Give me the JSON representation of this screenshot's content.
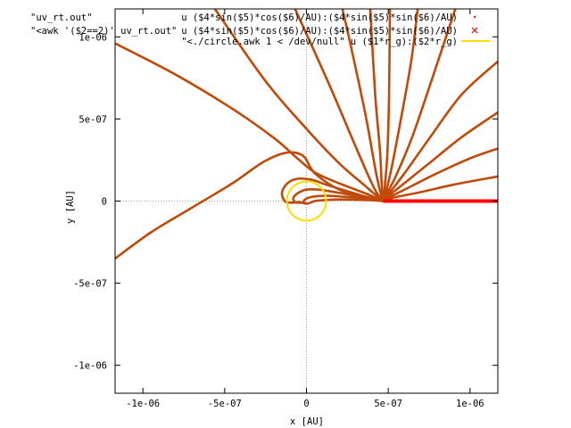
{
  "chart_data": {
    "type": "line",
    "title": "",
    "xlabel": "x [AU]",
    "ylabel": "y [AU]",
    "xlim": [
      -1.17e-06,
      1.17e-06
    ],
    "ylim": [
      -1.17e-06,
      1.17e-06
    ],
    "grid": "zero-axes only",
    "legend_placement": "top",
    "x_ticks": [
      {
        "value": -1e-06,
        "label": "-1e-06"
      },
      {
        "value": -5e-07,
        "label": "-5e-07"
      },
      {
        "value": 0,
        "label": "0"
      },
      {
        "value": 5e-07,
        "label": "5e-07"
      },
      {
        "value": 1e-06,
        "label": "1e-06"
      }
    ],
    "y_ticks": [
      {
        "value": -1e-06,
        "label": "-1e-06"
      },
      {
        "value": -5e-07,
        "label": "-5e-07"
      },
      {
        "value": 0,
        "label": "0"
      },
      {
        "value": 5e-07,
        "label": "5e-07"
      },
      {
        "value": 1e-06,
        "label": "1e-06"
      }
    ],
    "legend": [
      {
        "file": "\"uv_rt.out\"",
        "expr": "u ($4*sin($5)*cos($6)/AU):($4*sin($5)*sin($6)/AU)",
        "color": "#cc3300",
        "style": "points-dot"
      },
      {
        "file": "\"<awk '($2==2)' uv_rt.out\"",
        "expr": "u ($4*sin($5)*cos($6)/AU):($4*sin($5)*sin($6)/AU)",
        "color": "#ff0000",
        "style": "points-cross"
      },
      {
        "file": "",
        "expr": "\"<./circle.awk 1 < /dev/null\" u ($1*r_g):($2*r_g)",
        "color": "#ffdd00",
        "style": "line"
      }
    ],
    "source_point": [
      4.7e-07,
      0
    ],
    "emission_line": {
      "x_start": 4.7e-07,
      "x_end": 1.17e-06,
      "y": 0,
      "color": "#ff0000"
    },
    "circle": {
      "center": [
        0,
        0
      ],
      "radius": 1.2e-07,
      "color": "#ffdd00"
    },
    "rays_color": "#c04a0a",
    "rays": [
      {
        "name": "ray-1",
        "points": [
          [
            4.7e-07,
            0
          ],
          [
            4.9e-07,
            1e-08
          ],
          [
            5.5e-07,
            2.5e-08
          ],
          [
            7e-07,
            5.5e-08
          ],
          [
            9e-07,
            1e-07
          ],
          [
            1.17e-06,
            1.5e-07
          ]
        ]
      },
      {
        "name": "ray-2",
        "points": [
          [
            4.7e-07,
            0
          ],
          [
            5e-07,
            2e-08
          ],
          [
            6e-07,
            7e-08
          ],
          [
            8e-07,
            1.7e-07
          ],
          [
            1e-06,
            2.6e-07
          ],
          [
            1.17e-06,
            3.2e-07
          ]
        ]
      },
      {
        "name": "ray-3",
        "points": [
          [
            4.7e-07,
            0
          ],
          [
            5e-07,
            3e-08
          ],
          [
            6e-07,
            1.1e-07
          ],
          [
            7.5e-07,
            2.3e-07
          ],
          [
            9.5e-07,
            3.9e-07
          ],
          [
            1.17e-06,
            5.4e-07
          ]
        ]
      },
      {
        "name": "ray-4",
        "points": [
          [
            4.7e-07,
            0
          ],
          [
            5e-07,
            4e-08
          ],
          [
            6e-07,
            1.7e-07
          ],
          [
            7.5e-07,
            3.8e-07
          ],
          [
            9.5e-07,
            6.5e-07
          ],
          [
            1.17e-06,
            8.5e-07
          ]
        ]
      },
      {
        "name": "ray-5",
        "points": [
          [
            4.7e-07,
            0
          ],
          [
            5e-07,
            6e-08
          ],
          [
            5.5e-07,
            1.6e-07
          ],
          [
            6.5e-07,
            4e-07
          ],
          [
            7.8e-07,
            7.8e-07
          ],
          [
            9.1e-07,
            1.17e-06
          ]
        ]
      },
      {
        "name": "ray-6",
        "points": [
          [
            4.7e-07,
            0
          ],
          [
            4.9e-07,
            7e-08
          ],
          [
            5.2e-07,
            2e-07
          ],
          [
            5.7e-07,
            4.6e-07
          ],
          [
            6.4e-07,
            8.5e-07
          ],
          [
            6.8e-07,
            1.17e-06
          ]
        ]
      },
      {
        "name": "ray-7",
        "points": [
          [
            4.7e-07,
            0
          ],
          [
            4.8e-07,
            1e-07
          ],
          [
            4.95e-07,
            3e-07
          ],
          [
            5.05e-07,
            6.5e-07
          ],
          [
            5.1e-07,
            1.17e-06
          ]
        ]
      },
      {
        "name": "ray-8",
        "points": [
          [
            4.7e-07,
            0
          ],
          [
            4.6e-07,
            1e-07
          ],
          [
            4.5e-07,
            3e-07
          ],
          [
            4.2e-07,
            6.5e-07
          ],
          [
            3.9e-07,
            1.17e-06
          ]
        ]
      },
      {
        "name": "ray-9",
        "points": [
          [
            4.7e-07,
            0
          ],
          [
            4.5e-07,
            6e-08
          ],
          [
            4.2e-07,
            2e-07
          ],
          [
            3.6e-07,
            5.3e-07
          ],
          [
            2.7e-07,
            9.5e-07
          ],
          [
            2.2e-07,
            1.17e-06
          ]
        ]
      },
      {
        "name": "ray-10",
        "points": [
          [
            4.7e-07,
            0
          ],
          [
            4.3e-07,
            5e-08
          ],
          [
            3.8e-07,
            1.5e-07
          ],
          [
            2.8e-07,
            3.8e-07
          ],
          [
            1.3e-07,
            7.3e-07
          ],
          [
            -7e-08,
            1.17e-06
          ]
        ]
      },
      {
        "name": "ray-11",
        "points": [
          [
            4.7e-07,
            0
          ],
          [
            4.2e-07,
            4e-08
          ],
          [
            3.5e-07,
            1e-07
          ],
          [
            2e-07,
            2.3e-07
          ],
          [
            0,
            4.4e-07
          ],
          [
            -2.5e-07,
            7.3e-07
          ],
          [
            -5.6e-07,
            1.17e-06
          ]
        ]
      },
      {
        "name": "ray-12",
        "points": [
          [
            4.7e-07,
            0
          ],
          [
            3.9e-07,
            3.5e-08
          ],
          [
            3e-07,
            7e-08
          ],
          [
            1.7e-07,
            1.2e-07
          ],
          [
            5e-08,
            1.75e-07
          ],
          [
            -5e-08,
            2.55e-07
          ],
          [
            -2e-07,
            3.85e-07
          ],
          [
            -4.5e-07,
            5.6e-07
          ],
          [
            -8e-07,
            7.7e-07
          ],
          [
            -1.17e-06,
            9.6e-07
          ]
        ]
      },
      {
        "name": "ray-13",
        "points": [
          [
            4.7e-07,
            0
          ],
          [
            3.5e-07,
            3e-08
          ],
          [
            2e-07,
            7e-08
          ],
          [
            5e-08,
            1.7e-07
          ],
          [
            -2e-08,
            2.75e-07
          ],
          [
            -1.2e-07,
            2.95e-07
          ],
          [
            -2.6e-07,
            2.4e-07
          ],
          [
            -4.5e-07,
            1.1e-07
          ],
          [
            -7e-07,
            -4e-08
          ],
          [
            -9.5e-07,
            -1.9e-07
          ],
          [
            -1.17e-06,
            -3.5e-07
          ]
        ]
      },
      {
        "name": "ray-14",
        "points": [
          [
            4.7e-07,
            0
          ],
          [
            3.5e-07,
            3e-08
          ],
          [
            2.5e-07,
            6e-08
          ],
          [
            1.2e-07,
            1e-07
          ],
          [
            3e-08,
            1.3e-07
          ],
          [
            -6e-08,
            1.35e-07
          ],
          [
            -1.2e-07,
            1.05e-07
          ],
          [
            -1.5e-07,
            5e-08
          ],
          [
            -1.3e-07,
            -3e-09
          ],
          [
            -8e-08,
            -1e-08
          ],
          [
            -4e-08,
            -5e-09
          ]
        ]
      },
      {
        "name": "ray-15",
        "points": [
          [
            4.7e-07,
            0
          ],
          [
            3.7e-07,
            2e-08
          ],
          [
            2.6e-07,
            4e-08
          ],
          [
            1.4e-07,
            6e-08
          ],
          [
            7e-08,
            7e-08
          ],
          [
            0,
            7e-08
          ],
          [
            -5e-08,
            5e-08
          ],
          [
            -8e-08,
            2e-08
          ],
          [
            -7e-08,
            -5e-09
          ],
          [
            -4e-08,
            -1e-08
          ],
          [
            -1e-08,
            -1.2e-08
          ]
        ]
      },
      {
        "name": "ray-16",
        "points": [
          [
            4.7e-07,
            0
          ],
          [
            3.7e-07,
            1.5e-08
          ],
          [
            2.5e-07,
            2.5e-08
          ],
          [
            1.3e-07,
            3.2e-08
          ],
          [
            5e-08,
            2.8e-08
          ],
          [
            0,
            1.5e-08
          ],
          [
            -2e-08,
            -5e-09
          ],
          [
            -1e-08,
            -1.5e-08
          ],
          [
            1e-08,
            -1.5e-08
          ]
        ]
      },
      {
        "name": "ray-17",
        "points": [
          [
            4.7e-07,
            0
          ],
          [
            4e-07,
            5e-09
          ],
          [
            3e-07,
            8e-09
          ],
          [
            2e-07,
            1e-08
          ],
          [
            1e-07,
            5e-09
          ],
          [
            5e-08,
            0
          ],
          [
            2e-08,
            -1.2e-08
          ]
        ]
      }
    ]
  }
}
